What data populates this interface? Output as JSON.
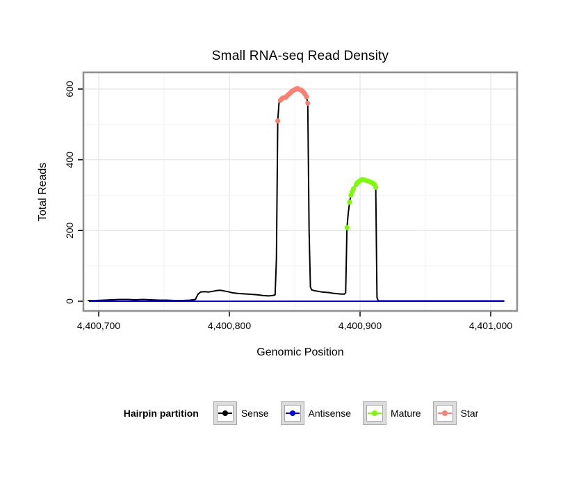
{
  "title": "Small RNA-seq Read Density",
  "axes": {
    "x_label": "Genomic Position",
    "y_label": "Total Reads"
  },
  "legend": {
    "title": "Hairpin partition",
    "items": [
      {
        "label": "Sense",
        "color": "#000000"
      },
      {
        "label": "Antisense",
        "color": "#0000EE"
      },
      {
        "label": "Mature",
        "color": "#7CFC00"
      },
      {
        "label": "Star",
        "color": "#FA8072"
      }
    ]
  },
  "chart_data": {
    "type": "line",
    "title": "Small RNA-seq Read Density",
    "xlabel": "Genomic Position",
    "ylabel": "Total Reads",
    "xlim": [
      4400688,
      4401020
    ],
    "ylim": [
      -25,
      645
    ],
    "grid": {
      "x_minor_step": 50,
      "y_minor_step": 100,
      "major_color": "#e4e4e4",
      "minor_color": "#f1f1f1"
    },
    "x_ticks": [
      {
        "value": 4400700,
        "label": "4,400,700"
      },
      {
        "value": 4400800,
        "label": "4,400,800"
      },
      {
        "value": 4400900,
        "label": "4,400,900"
      },
      {
        "value": 4401000,
        "label": "4,401,000"
      }
    ],
    "y_ticks": [
      {
        "value": 0,
        "label": "0"
      },
      {
        "value": 200,
        "label": "200"
      },
      {
        "value": 400,
        "label": "400"
      },
      {
        "value": 600,
        "label": "600"
      }
    ],
    "series": [
      {
        "name": "Sense",
        "type": "line",
        "color": "#000000",
        "points": [
          [
            4400692,
            2
          ],
          [
            4400698,
            2
          ],
          [
            4400704,
            3
          ],
          [
            4400710,
            4
          ],
          [
            4400716,
            5
          ],
          [
            4400722,
            5
          ],
          [
            4400728,
            4
          ],
          [
            4400734,
            5
          ],
          [
            4400740,
            4
          ],
          [
            4400746,
            3
          ],
          [
            4400752,
            3
          ],
          [
            4400758,
            2
          ],
          [
            4400764,
            2
          ],
          [
            4400770,
            3
          ],
          [
            4400774,
            5
          ],
          [
            4400776,
            20
          ],
          [
            4400778,
            26
          ],
          [
            4400781,
            27
          ],
          [
            4400784,
            26
          ],
          [
            4400787,
            28
          ],
          [
            4400790,
            30
          ],
          [
            4400793,
            31
          ],
          [
            4400796,
            29
          ],
          [
            4400799,
            27
          ],
          [
            4400802,
            24
          ],
          [
            4400806,
            22
          ],
          [
            4400810,
            21
          ],
          [
            4400814,
            20
          ],
          [
            4400818,
            19
          ],
          [
            4400822,
            18
          ],
          [
            4400826,
            16
          ],
          [
            4400830,
            15
          ],
          [
            4400833,
            16
          ],
          [
            4400835,
            18
          ],
          [
            4400836,
            120
          ],
          [
            4400837,
            510
          ],
          [
            4400838,
            560
          ],
          [
            4400839,
            568
          ],
          [
            4400840,
            572
          ],
          [
            4400841,
            575
          ],
          [
            4400842,
            572
          ],
          [
            4400843,
            576
          ],
          [
            4400844,
            580
          ],
          [
            4400845,
            584
          ],
          [
            4400846,
            587
          ],
          [
            4400847,
            590
          ],
          [
            4400848,
            594
          ],
          [
            4400849,
            596
          ],
          [
            4400850,
            598
          ],
          [
            4400851,
            600
          ],
          [
            4400852,
            601
          ],
          [
            4400853,
            600
          ],
          [
            4400854,
            598
          ],
          [
            4400855,
            597
          ],
          [
            4400856,
            594
          ],
          [
            4400857,
            590
          ],
          [
            4400858,
            585
          ],
          [
            4400859,
            578
          ],
          [
            4400860,
            560
          ],
          [
            4400861,
            200
          ],
          [
            4400862,
            40
          ],
          [
            4400863,
            32
          ],
          [
            4400865,
            30
          ],
          [
            4400868,
            28
          ],
          [
            4400871,
            26
          ],
          [
            4400874,
            25
          ],
          [
            4400877,
            24
          ],
          [
            4400880,
            22
          ],
          [
            4400883,
            21
          ],
          [
            4400886,
            20
          ],
          [
            4400888,
            20
          ],
          [
            4400889,
            24
          ],
          [
            4400890,
            208
          ],
          [
            4400891,
            250
          ],
          [
            4400892,
            280
          ],
          [
            4400893,
            300
          ],
          [
            4400894,
            310
          ],
          [
            4400895,
            318
          ],
          [
            4400896,
            324
          ],
          [
            4400897,
            330
          ],
          [
            4400898,
            335
          ],
          [
            4400899,
            338
          ],
          [
            4400900,
            341
          ],
          [
            4400901,
            343
          ],
          [
            4400902,
            344
          ],
          [
            4400904,
            342
          ],
          [
            4400906,
            340
          ],
          [
            4400908,
            337
          ],
          [
            4400910,
            333
          ],
          [
            4400911,
            330
          ],
          [
            4400912,
            322
          ],
          [
            4400913,
            10
          ],
          [
            4400914,
            1
          ],
          [
            4400922,
            1
          ],
          [
            4400935,
            1
          ],
          [
            4400950,
            1
          ],
          [
            4400968,
            1
          ],
          [
            4400985,
            1
          ],
          [
            4401000,
            1
          ],
          [
            4401010,
            1
          ]
        ]
      },
      {
        "name": "Antisense",
        "type": "line",
        "color": "#0000EE",
        "points": [
          [
            4400693,
            0
          ],
          [
            4401010,
            0
          ]
        ]
      },
      {
        "name": "Mature",
        "type": "points",
        "color": "#7CFC00",
        "points": [
          [
            4400890,
            208
          ],
          [
            4400892,
            280
          ],
          [
            4400893,
            300
          ],
          [
            4400894,
            310
          ],
          [
            4400895,
            318
          ],
          [
            4400897,
            330
          ],
          [
            4400898,
            335
          ],
          [
            4400899,
            338
          ],
          [
            4400900,
            341
          ],
          [
            4400901,
            343
          ],
          [
            4400902,
            344
          ],
          [
            4400904,
            342
          ],
          [
            4400906,
            340
          ],
          [
            4400908,
            337
          ],
          [
            4400910,
            333
          ],
          [
            4400911,
            330
          ],
          [
            4400912,
            322
          ]
        ]
      },
      {
        "name": "Star",
        "type": "points",
        "color": "#FA8072",
        "points": [
          [
            4400837,
            510
          ],
          [
            4400839,
            568
          ],
          [
            4400840,
            572
          ],
          [
            4400841,
            575
          ],
          [
            4400843,
            576
          ],
          [
            4400844,
            580
          ],
          [
            4400845,
            584
          ],
          [
            4400846,
            587
          ],
          [
            4400847,
            590
          ],
          [
            4400848,
            594
          ],
          [
            4400849,
            596
          ],
          [
            4400850,
            598
          ],
          [
            4400851,
            600
          ],
          [
            4400852,
            601
          ],
          [
            4400853,
            600
          ],
          [
            4400854,
            598
          ],
          [
            4400855,
            597
          ],
          [
            4400856,
            594
          ],
          [
            4400857,
            590
          ],
          [
            4400858,
            585
          ],
          [
            4400859,
            578
          ],
          [
            4400860,
            560
          ]
        ]
      }
    ]
  }
}
